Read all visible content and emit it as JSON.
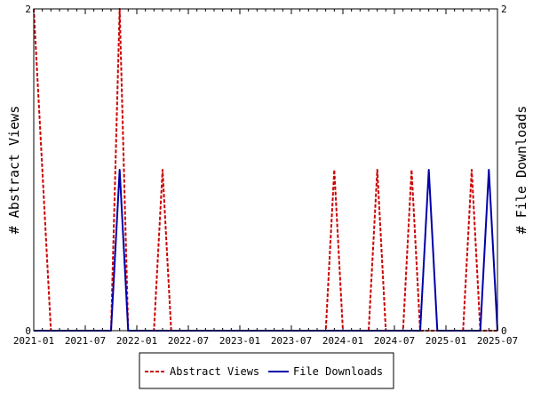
{
  "chart_data": {
    "type": "line",
    "x_ticks": [
      "2021-01",
      "2021-07",
      "2022-01",
      "2022-07",
      "2023-01",
      "2023-07",
      "2024-01",
      "2024-07",
      "2025-01",
      "2025-07"
    ],
    "y_left": {
      "label": "# Abstract Views",
      "ticks": [
        "0",
        "2"
      ],
      "range": [
        0,
        2
      ]
    },
    "y_right": {
      "label": "# File Downloads",
      "ticks": [
        "0",
        "2"
      ],
      "range": [
        0,
        2
      ]
    },
    "x_range": [
      "2021-01",
      "2025-07"
    ],
    "series": [
      {
        "name": "Abstract Views",
        "color": "#cc0000",
        "style": "dashed",
        "points": [
          [
            "2021-01",
            2
          ],
          [
            "2021-03",
            0
          ],
          [
            "2021-10",
            0
          ],
          [
            "2021-11",
            2
          ],
          [
            "2021-12",
            0
          ],
          [
            "2022-03",
            0
          ],
          [
            "2022-04",
            1
          ],
          [
            "2022-05",
            0
          ],
          [
            "2023-11",
            0
          ],
          [
            "2023-12",
            1
          ],
          [
            "2024-01",
            0
          ],
          [
            "2024-04",
            0
          ],
          [
            "2024-05",
            1
          ],
          [
            "2024-06",
            0
          ],
          [
            "2024-08",
            0
          ],
          [
            "2024-09",
            1
          ],
          [
            "2024-10",
            0
          ],
          [
            "2025-03",
            0
          ],
          [
            "2025-04",
            1
          ],
          [
            "2025-05",
            0
          ],
          [
            "2025-07",
            0
          ]
        ]
      },
      {
        "name": "File Downloads",
        "color": "#0000aa",
        "style": "solid",
        "points": [
          [
            "2021-01",
            0
          ],
          [
            "2021-10",
            0
          ],
          [
            "2021-11",
            1
          ],
          [
            "2021-12",
            0
          ],
          [
            "2024-10",
            0
          ],
          [
            "2024-11",
            1
          ],
          [
            "2024-12",
            0
          ],
          [
            "2025-05",
            0
          ],
          [
            "2025-06",
            1
          ],
          [
            "2025-07",
            0
          ]
        ]
      }
    ],
    "legend": {
      "position": "bottom",
      "entries": [
        "Abstract Views",
        "File Downloads"
      ]
    }
  }
}
